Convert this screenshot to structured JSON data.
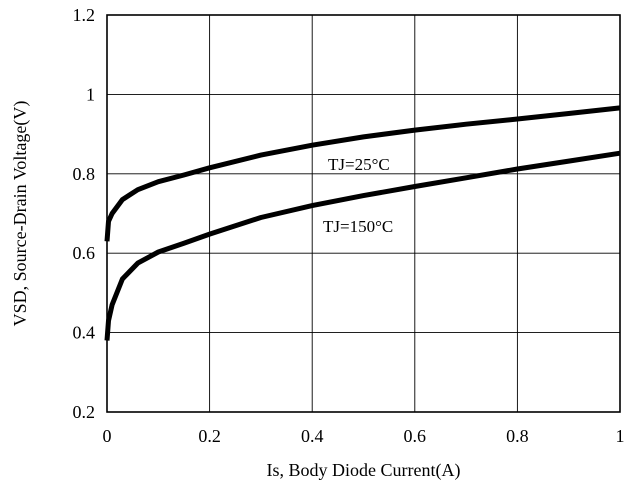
{
  "chart_data": {
    "type": "line",
    "title": "",
    "xlabel": "Is, Body Diode Current(A)",
    "ylabel": "VSD, Source-Drain Voltage(V)",
    "xlim": [
      0,
      1
    ],
    "ylim": [
      0.2,
      1.2
    ],
    "x_ticks": [
      "0",
      "0.2",
      "0.4",
      "0.6",
      "0.8",
      "1"
    ],
    "y_ticks": [
      "0.2",
      "0.4",
      "0.6",
      "0.8",
      "1",
      "1.2"
    ],
    "grid": true,
    "series": [
      {
        "name": "TJ=25°C",
        "points": [
          [
            0.0,
            0.63
          ],
          [
            0.003,
            0.68
          ],
          [
            0.01,
            0.7
          ],
          [
            0.03,
            0.735
          ],
          [
            0.06,
            0.76
          ],
          [
            0.1,
            0.78
          ],
          [
            0.15,
            0.797
          ],
          [
            0.2,
            0.815
          ],
          [
            0.3,
            0.847
          ],
          [
            0.4,
            0.872
          ],
          [
            0.5,
            0.893
          ],
          [
            0.6,
            0.91
          ],
          [
            0.7,
            0.925
          ],
          [
            0.8,
            0.938
          ],
          [
            0.9,
            0.952
          ],
          [
            1.0,
            0.966
          ]
        ],
        "color": "#000000"
      },
      {
        "name": "TJ=150°C",
        "points": [
          [
            0.0,
            0.38
          ],
          [
            0.003,
            0.43
          ],
          [
            0.01,
            0.47
          ],
          [
            0.03,
            0.535
          ],
          [
            0.06,
            0.575
          ],
          [
            0.1,
            0.603
          ],
          [
            0.15,
            0.625
          ],
          [
            0.2,
            0.648
          ],
          [
            0.3,
            0.69
          ],
          [
            0.4,
            0.72
          ],
          [
            0.5,
            0.745
          ],
          [
            0.6,
            0.768
          ],
          [
            0.7,
            0.79
          ],
          [
            0.8,
            0.812
          ],
          [
            0.9,
            0.832
          ],
          [
            1.0,
            0.852
          ]
        ],
        "color": "#000000"
      }
    ],
    "annotations": [
      {
        "text": "TJ=25°C",
        "series": 0
      },
      {
        "text": "TJ=150°C",
        "series": 1
      }
    ]
  }
}
